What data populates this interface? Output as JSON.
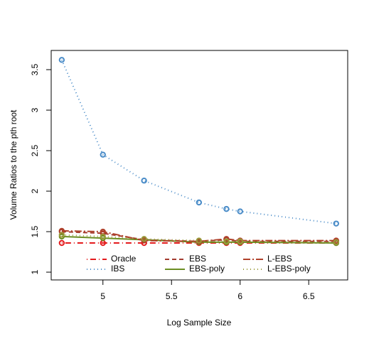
{
  "chart_data": {
    "type": "line",
    "x_label": "Log Sample Size",
    "y_label": "Volume Ratios to the pth root",
    "x": [
      4.7,
      5.0,
      5.3,
      5.7,
      5.9,
      6.0,
      6.7
    ],
    "xlim": [
      4.623,
      6.784
    ],
    "xticks": [
      5.0,
      5.5,
      6.0,
      6.5
    ],
    "ylim": [
      0.904,
      3.737
    ],
    "yticks": [
      1.0,
      1.5,
      2.0,
      2.5,
      3.0,
      3.5
    ],
    "series": [
      {
        "name": "Oracle",
        "color": "#e41a1c",
        "line_style": "dotdash",
        "values": [
          1.36,
          1.36,
          1.36,
          1.36,
          1.36,
          1.36,
          1.36
        ]
      },
      {
        "name": "IBS",
        "color": "#4a8cc8",
        "line_style": "dotted",
        "values": [
          3.62,
          2.45,
          2.13,
          1.86,
          1.78,
          1.75,
          1.6
        ]
      },
      {
        "name": "EBS",
        "color": "#a33a2e",
        "line_style": "dashed",
        "values": [
          1.5,
          1.48,
          1.4,
          1.38,
          1.4,
          1.38,
          1.38
        ]
      },
      {
        "name": "EBS-poly",
        "color": "#6b8e23",
        "line_style": "solid",
        "values": [
          1.44,
          1.42,
          1.4,
          1.37,
          1.37,
          1.37,
          1.36
        ]
      },
      {
        "name": "L-EBS",
        "color": "#b0402a",
        "line_style": "longdash",
        "values": [
          1.51,
          1.5,
          1.39,
          1.38,
          1.41,
          1.39,
          1.39
        ]
      },
      {
        "name": "L-EBS-poly",
        "color": "#9a9a3a",
        "line_style": "dotted",
        "values": [
          1.46,
          1.44,
          1.41,
          1.39,
          1.38,
          1.38,
          1.37
        ]
      }
    ]
  }
}
